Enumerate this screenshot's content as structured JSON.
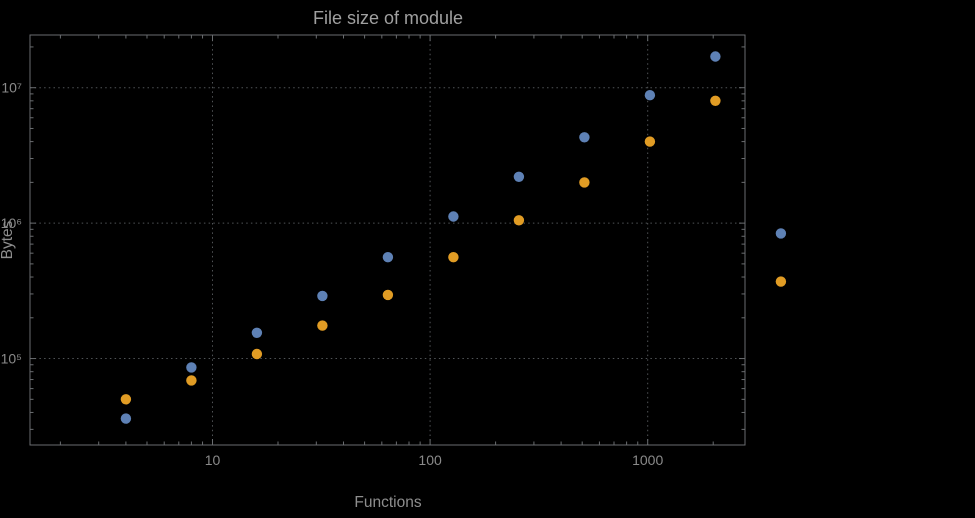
{
  "colors": {
    "background": "#000000",
    "title": "#a0a0a0",
    "axis_label": "#8e8e8e",
    "tick_label": "#8a8a8a",
    "frame": "#6a6d70",
    "grid": "#515457",
    "series_blue": "#5e81b5",
    "series_orange": "#e19c24"
  },
  "chart_data": {
    "type": "scatter",
    "title": "File size of module",
    "xlabel": "Functions",
    "ylabel": "Bytes",
    "x_scale": "log",
    "y_scale": "log",
    "grid": "dotted",
    "legend": null,
    "xlim": [
      1.45,
      2800
    ],
    "ylim": [
      23000,
      24500000
    ],
    "x_ticks": [
      10,
      100,
      1000
    ],
    "x_tick_labels": [
      "10",
      "100",
      "1000"
    ],
    "y_ticks": [
      100000,
      1000000,
      10000000
    ],
    "y_tick_labels": [
      "10⁵",
      "10⁶",
      "10⁷"
    ],
    "series": [
      {
        "name": "blue",
        "color": "#5e81b5",
        "points": [
          [
            4,
            36000
          ],
          [
            8,
            86000
          ],
          [
            16,
            155000
          ],
          [
            32,
            290000
          ],
          [
            64,
            560000
          ],
          [
            128,
            1120000
          ],
          [
            256,
            2200000
          ],
          [
            512,
            4300000
          ],
          [
            1024,
            8800000
          ],
          [
            2048,
            17000000
          ],
          [
            4096,
            840000
          ]
        ]
      },
      {
        "name": "orange",
        "color": "#e19c24",
        "points": [
          [
            4,
            50000
          ],
          [
            8,
            69000
          ],
          [
            16,
            108000
          ],
          [
            32,
            175000
          ],
          [
            64,
            295000
          ],
          [
            128,
            560000
          ],
          [
            256,
            1050000
          ],
          [
            512,
            2000000
          ],
          [
            1024,
            4000000
          ],
          [
            2048,
            8000000
          ],
          [
            4096,
            370000
          ]
        ]
      }
    ]
  }
}
